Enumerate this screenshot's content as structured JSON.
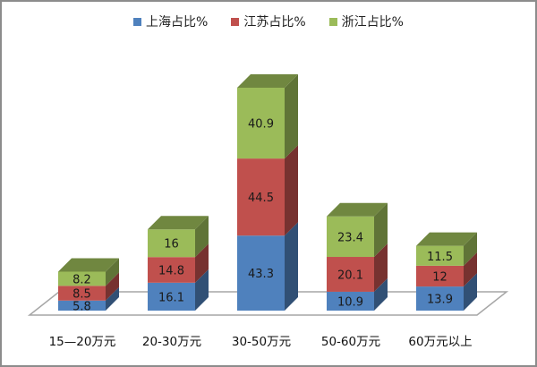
{
  "chart_data": {
    "type": "bar",
    "stacked": true,
    "style": "3d-column",
    "title": "",
    "xlabel": "",
    "ylabel": "",
    "categories": [
      "15—20万元",
      "20-30万元",
      "30-50万元",
      "50-60万元",
      "60万元以上"
    ],
    "series": [
      {
        "name": "上海占比%",
        "color": "#4f81bd",
        "values": [
          5.8,
          16.1,
          43.3,
          10.9,
          13.9
        ]
      },
      {
        "name": "江苏占比%",
        "color": "#c0504d",
        "values": [
          8.5,
          14.8,
          44.5,
          20.1,
          12
        ]
      },
      {
        "name": "浙江占比%",
        "color": "#9bbb59",
        "values": [
          8.2,
          16,
          40.9,
          23.4,
          11.5
        ]
      }
    ],
    "data_labels": [
      [
        "5.8",
        "16.1",
        "43.3",
        "10.9",
        "13.9"
      ],
      [
        "8.5",
        "14.8",
        "44.5",
        "20.1",
        "12"
      ],
      [
        "8.2",
        "16",
        "40.9",
        "23.4",
        "11.5"
      ]
    ],
    "legend_position": "top",
    "grid": false,
    "y_axis_visible": false
  },
  "legend": {
    "items": [
      {
        "label": "上海占比%",
        "color": "#4f81bd"
      },
      {
        "label": "江苏占比%",
        "color": "#c0504d"
      },
      {
        "label": "浙江占比%",
        "color": "#9bbb59"
      }
    ]
  },
  "x_axis": {
    "labels": [
      "15—20万元",
      "20-30万元",
      "30-50万元",
      "50-60万元",
      "60万元以上"
    ]
  }
}
